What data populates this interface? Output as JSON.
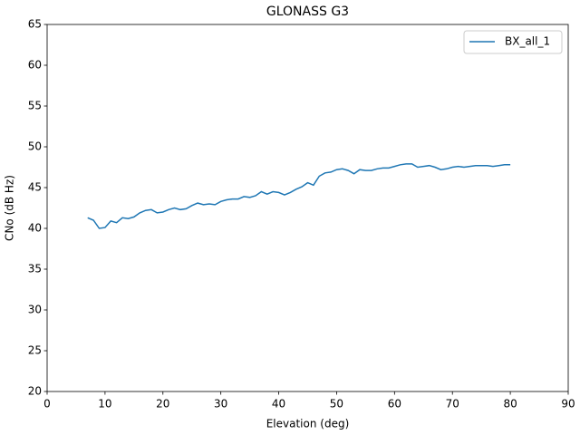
{
  "chart_data": {
    "type": "line",
    "title": "GLONASS G3",
    "xlabel": "Elevation (deg)",
    "ylabel": "CNo (dB Hz)",
    "xlim": [
      0,
      90
    ],
    "xticks": [
      0,
      10,
      20,
      30,
      40,
      50,
      60,
      70,
      80,
      90
    ],
    "ylim": [
      20,
      65
    ],
    "yticks": [
      20,
      25,
      30,
      35,
      40,
      45,
      50,
      55,
      60,
      65
    ],
    "legend": "upper right",
    "x": [
      7,
      8,
      9,
      10,
      11,
      12,
      13,
      14,
      15,
      16,
      17,
      18,
      19,
      20,
      21,
      22,
      23,
      24,
      25,
      26,
      27,
      28,
      29,
      30,
      31,
      32,
      33,
      34,
      35,
      36,
      37,
      38,
      39,
      40,
      41,
      42,
      43,
      44,
      45,
      46,
      47,
      48,
      49,
      50,
      51,
      52,
      53,
      54,
      55,
      56,
      57,
      58,
      59,
      60,
      61,
      62,
      63,
      64,
      65,
      66,
      67,
      68,
      69,
      70,
      71,
      72,
      73,
      74,
      75,
      76,
      77,
      78,
      79,
      80
    ],
    "series": [
      {
        "name": "BX_all_1",
        "color": "#1f77b4",
        "values": [
          41.3,
          41.0,
          40.0,
          40.1,
          40.9,
          40.7,
          41.3,
          41.2,
          41.4,
          41.9,
          42.2,
          42.3,
          41.9,
          42.0,
          42.3,
          42.5,
          42.3,
          42.4,
          42.8,
          43.1,
          42.9,
          43.0,
          42.9,
          43.3,
          43.5,
          43.6,
          43.6,
          43.9,
          43.8,
          44.0,
          44.5,
          44.2,
          44.5,
          44.4,
          44.1,
          44.4,
          44.8,
          45.1,
          45.6,
          45.3,
          46.4,
          46.8,
          46.9,
          47.2,
          47.3,
          47.1,
          46.7,
          47.2,
          47.1,
          47.1,
          47.3,
          47.4,
          47.4,
          47.6,
          47.8,
          47.9,
          47.9,
          47.5,
          47.6,
          47.7,
          47.5,
          47.2,
          47.3,
          47.5,
          47.6,
          47.5,
          47.6,
          47.7,
          47.7,
          47.7,
          47.6,
          47.7,
          47.8,
          47.8
        ]
      }
    ]
  }
}
